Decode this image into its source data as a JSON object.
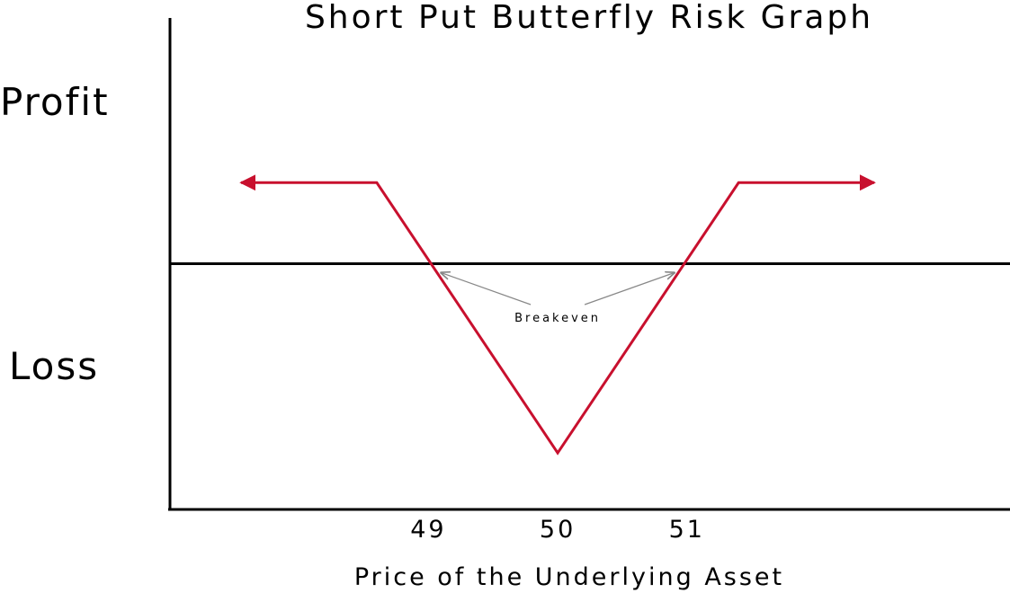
{
  "chart_data": {
    "type": "line",
    "title": "Short Put Butterfly Risk Graph",
    "xlabel": "Price of the Underlying Asset",
    "ylabel_top": "Profit",
    "ylabel_bottom": "Loss",
    "x_ticks": [
      "49",
      "50",
      "51"
    ],
    "xlim": [
      47.0,
      53.5
    ],
    "ylim": [
      -1.0,
      1.0
    ],
    "grid": false,
    "series": [
      {
        "color": "#c8102e",
        "points": [
          {
            "x": 47.55,
            "y": 0.33
          },
          {
            "x": 48.6,
            "y": 0.33
          },
          {
            "x": 50.0,
            "y": -0.77
          },
          {
            "x": 51.4,
            "y": 0.33
          },
          {
            "x": 52.45,
            "y": 0.33
          }
        ],
        "arrow_both_ends": true
      }
    ],
    "zero_line": 0,
    "annotations": [
      {
        "text": "Breakeven",
        "targets": [
          {
            "x": 49.0,
            "y": 0
          },
          {
            "x": 51.0,
            "y": 0
          }
        ]
      }
    ]
  }
}
